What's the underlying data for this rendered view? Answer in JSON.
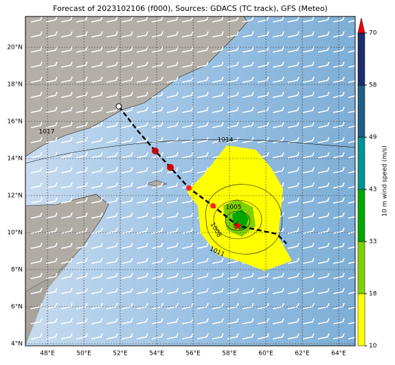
{
  "map": {
    "title": "Forecast of 2023102106 (f000), Sources: GDACS (TC track), GFS (Meteo)",
    "lon_ticks": [
      {
        "value": 48,
        "label": "48°E"
      },
      {
        "value": 50,
        "label": "50°E"
      },
      {
        "value": 52,
        "label": "52°E"
      },
      {
        "value": 54,
        "label": "54°E"
      },
      {
        "value": 56,
        "label": "56°E"
      },
      {
        "value": 58,
        "label": "58°E"
      },
      {
        "value": 60,
        "label": "60°E"
      },
      {
        "value": 62,
        "label": "62°E"
      },
      {
        "value": 64,
        "label": "64°E"
      }
    ],
    "lat_ticks": [
      {
        "value": 4,
        "label": "4°N"
      },
      {
        "value": 6,
        "label": "6°N"
      },
      {
        "value": 8,
        "label": "8°N"
      },
      {
        "value": 10,
        "label": "10°N"
      },
      {
        "value": 12,
        "label": "12°N"
      },
      {
        "value": 14,
        "label": "14°N"
      },
      {
        "value": 16,
        "label": "16°N"
      },
      {
        "value": 18,
        "label": "18°N"
      },
      {
        "value": 20,
        "label": "20°N"
      }
    ],
    "isobar_labels": [
      "1017",
      "1014",
      "1005",
      "1008",
      "1011"
    ],
    "colorbar": {
      "label": "10 m wind speed (m/s)",
      "ticks": [
        10,
        18,
        33,
        43,
        49,
        58,
        70
      ],
      "colors": [
        "#ffff00",
        "#7fd000",
        "#00a800",
        "#009494",
        "#1f5f86",
        "#1f2e6b"
      ]
    }
  }
}
